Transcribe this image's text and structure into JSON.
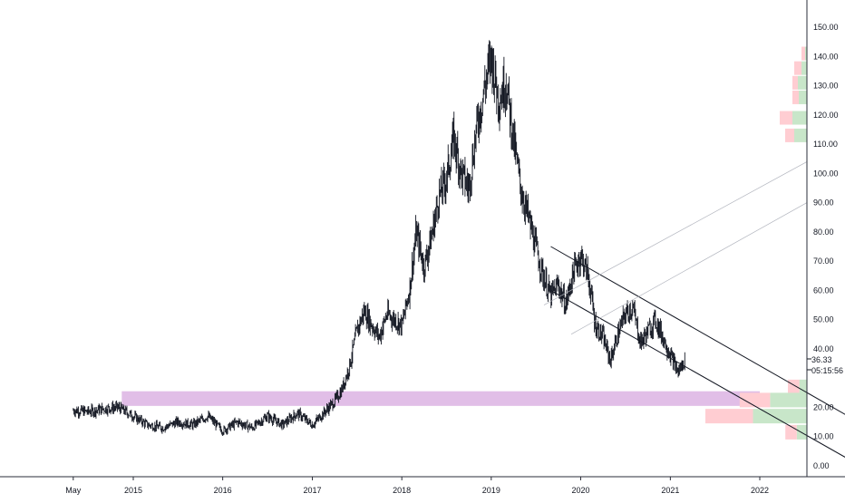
{
  "axes": {
    "y_ticks": [
      "150.00",
      "140.00",
      "130.00",
      "120.00",
      "110.00",
      "100.00",
      "90.00",
      "80.00",
      "70.00",
      "60.00",
      "50.00",
      "40.00",
      "20.00",
      "10.00",
      "0.00"
    ],
    "x_ticks": [
      "May",
      "2015",
      "2016",
      "2017",
      "2018",
      "2019",
      "2020",
      "2021",
      "2022"
    ]
  },
  "price_label": "36.33",
  "timer_label": "05:15:56",
  "colors": {
    "candle": "#131722",
    "zone": "#e1bee7",
    "vp_up": "#c8e6c9",
    "vp_down": "#ffcdd2",
    "axis_text": "#131722",
    "price_badge": "#ffffff"
  },
  "chart_data": {
    "type": "line",
    "title": "",
    "xlabel": "",
    "ylabel": "",
    "ylim": [
      -5,
      157
    ],
    "y_scale": "linear",
    "xlim": [
      "2014-03-01",
      "2022-06-01"
    ],
    "grid": false,
    "series": [
      {
        "style": "candlestick-approx",
        "points": [
          [
            "2014-05-01",
            19
          ],
          [
            "2014-07-01",
            18.5
          ],
          [
            "2014-09-01",
            19.5
          ],
          [
            "2014-11-01",
            20
          ],
          [
            "2015-01-01",
            17
          ],
          [
            "2015-03-01",
            14
          ],
          [
            "2015-05-01",
            13
          ],
          [
            "2015-07-01",
            15
          ],
          [
            "2015-09-01",
            14
          ],
          [
            "2015-11-01",
            17
          ],
          [
            "2016-01-01",
            12
          ],
          [
            "2016-03-01",
            15
          ],
          [
            "2016-05-01",
            13
          ],
          [
            "2016-07-01",
            17
          ],
          [
            "2016-09-01",
            14
          ],
          [
            "2016-11-01",
            18
          ],
          [
            "2017-01-01",
            14
          ],
          [
            "2017-02-15",
            18
          ],
          [
            "2017-04-01",
            22
          ],
          [
            "2017-05-01",
            26
          ],
          [
            "2017-06-01",
            34
          ],
          [
            "2017-07-01",
            46
          ],
          [
            "2017-08-01",
            53
          ],
          [
            "2017-09-01",
            48
          ],
          [
            "2017-10-01",
            44
          ],
          [
            "2017-11-01",
            52
          ],
          [
            "2017-12-01",
            50
          ],
          [
            "2018-01-01",
            48
          ],
          [
            "2018-02-01",
            60
          ],
          [
            "2018-03-01",
            80
          ],
          [
            "2018-04-01",
            68
          ],
          [
            "2018-05-01",
            78
          ],
          [
            "2018-06-01",
            92
          ],
          [
            "2018-07-01",
            98
          ],
          [
            "2018-08-01",
            112
          ],
          [
            "2018-09-01",
            100
          ],
          [
            "2018-10-01",
            95
          ],
          [
            "2018-11-01",
            115
          ],
          [
            "2018-12-01",
            128
          ],
          [
            "2019-01-01",
            140
          ],
          [
            "2019-02-01",
            125
          ],
          [
            "2019-03-01",
            132
          ],
          [
            "2019-04-01",
            112
          ],
          [
            "2019-05-01",
            95
          ],
          [
            "2019-06-01",
            85
          ],
          [
            "2019-07-01",
            75
          ],
          [
            "2019-08-01",
            65
          ],
          [
            "2019-09-01",
            58
          ],
          [
            "2019-10-01",
            62
          ],
          [
            "2019-11-01",
            55
          ],
          [
            "2019-12-01",
            66
          ],
          [
            "2020-01-01",
            72
          ],
          [
            "2020-02-01",
            65
          ],
          [
            "2020-03-01",
            48
          ],
          [
            "2020-04-01",
            44
          ],
          [
            "2020-05-01",
            36
          ],
          [
            "2020-06-01",
            45
          ],
          [
            "2020-07-01",
            52
          ],
          [
            "2020-08-01",
            54
          ],
          [
            "2020-09-01",
            42
          ],
          [
            "2020-10-01",
            46
          ],
          [
            "2020-11-01",
            50
          ],
          [
            "2020-12-01",
            44
          ],
          [
            "2021-01-01",
            38
          ],
          [
            "2021-02-01",
            32
          ],
          [
            "2021-03-01",
            36
          ]
        ]
      }
    ],
    "zones": [
      {
        "from_x": "2014-11-15",
        "to_x": "2022-01-01",
        "y_low": 20.5,
        "y_high": 25.5
      }
    ],
    "trendlines": [
      {
        "from": [
          "2019-09-01",
          75
        ],
        "to": [
          "2024-04-01",
          -5
        ]
      },
      {
        "from": [
          "2019-09-01",
          60
        ],
        "to": [
          "2023-06-01",
          -5
        ]
      }
    ],
    "volume_profile_top": [
      {
        "y_center": 141,
        "up": 2,
        "down": 4
      },
      {
        "y_center": 136,
        "up": 6,
        "down": 8
      },
      {
        "y_center": 131,
        "up": 10,
        "down": 6
      },
      {
        "y_center": 126,
        "up": 9,
        "down": 7
      },
      {
        "y_center": 119,
        "up": 16,
        "down": 14
      },
      {
        "y_center": 113,
        "up": 14,
        "down": 10
      }
    ],
    "volume_profile_bottom": [
      {
        "y_center": 27,
        "up": 12,
        "down": 18
      },
      {
        "y_center": 22.5,
        "up": 58,
        "down": 48
      },
      {
        "y_center": 17,
        "up": 85,
        "down": 75
      },
      {
        "y_center": 11.5,
        "up": 16,
        "down": 18
      }
    ]
  }
}
